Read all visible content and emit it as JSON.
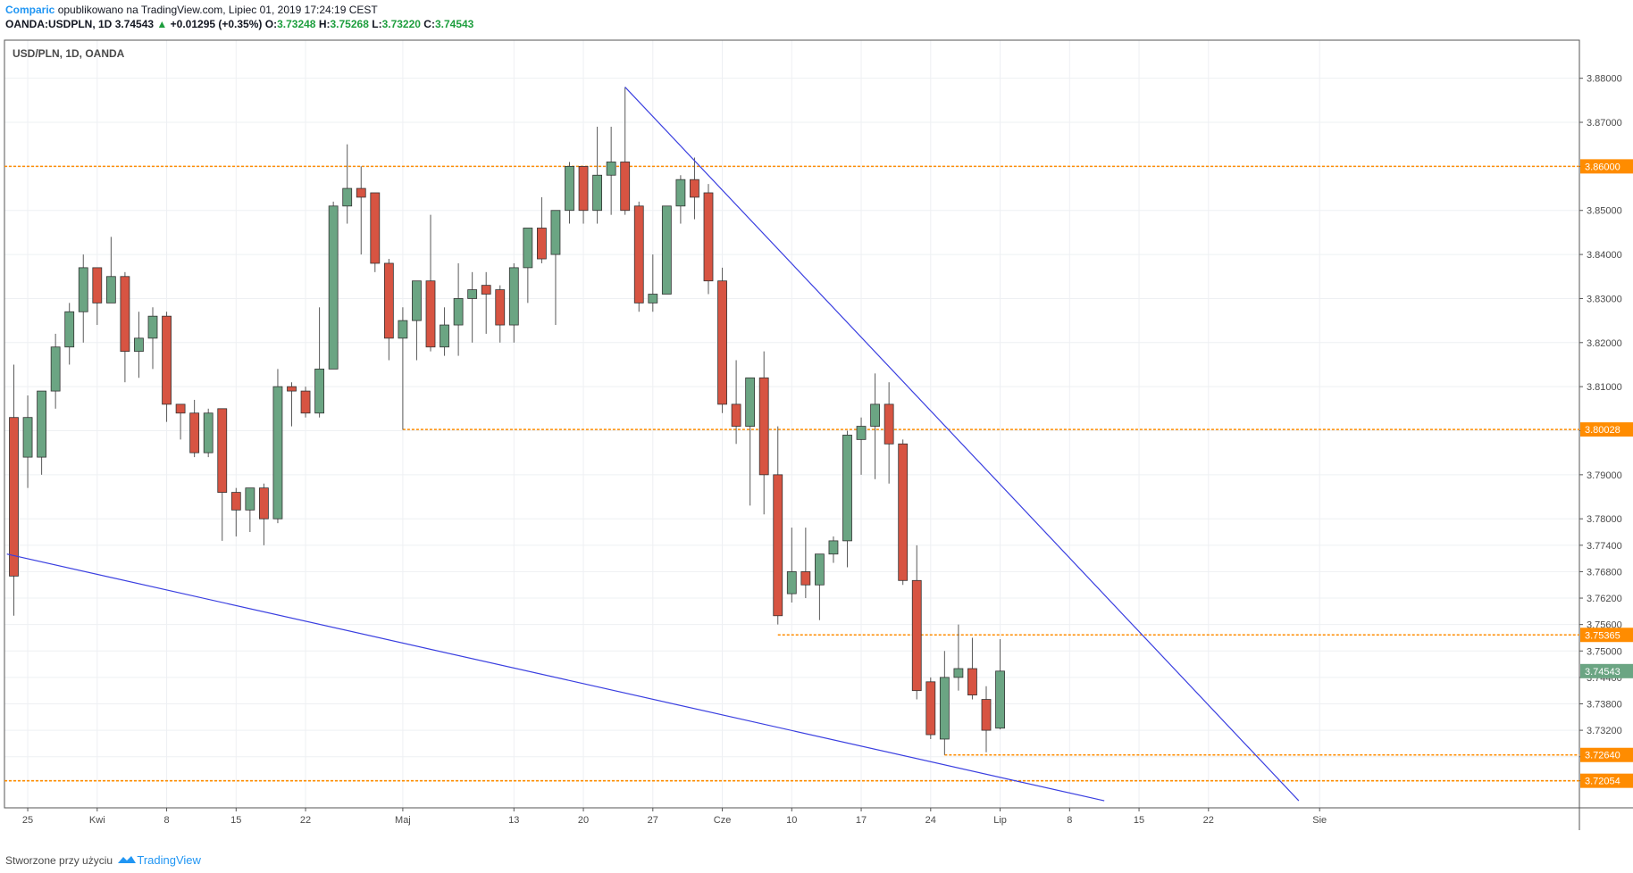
{
  "header": {
    "author": "Comparic",
    "published_text": "opublikowano na TradingView.com, Lipiec 01, 2019 17:24:19 CEST",
    "symbol_info": "OANDA:USDPLN, 1D",
    "last": "3.74543",
    "change": "+0.01295 (+0.35%)",
    "o_label": "O:",
    "o_value": "3.73248",
    "h_label": "H:",
    "h_value": "3.75268",
    "l_label": "L:",
    "l_value": "3.73220",
    "c_label": "C:",
    "c_value": "3.74543"
  },
  "footer": {
    "text": "Stworzone przy użyciu",
    "brand": "TradingView"
  },
  "colors": {
    "up": "#6ba583",
    "down": "#d75442",
    "wick": "#5a5a5a",
    "trendline": "#3a3fe0",
    "level": "#ff8c00",
    "grid": "#eef0f3",
    "last_badge": "#6ba583"
  },
  "chart_data": {
    "type": "candlestick",
    "title": "USD/PLN, 1D, OANDA",
    "ylim": [
      3.715,
      3.885
    ],
    "y_ticks": [
      "3.88000",
      "3.87000",
      "3.86000",
      "3.85000",
      "3.84000",
      "3.83000",
      "3.82000",
      "3.81000",
      "3.80000",
      "3.79000",
      "3.78000",
      "3.77400",
      "3.76800",
      "3.76200",
      "3.75600",
      "3.75000",
      "3.74400",
      "3.73800",
      "3.73200",
      "3.72600",
      "3.72054"
    ],
    "x_ticks": [
      {
        "label": "25",
        "slot": 1
      },
      {
        "label": "Kwi",
        "slot": 6
      },
      {
        "label": "8",
        "slot": 11
      },
      {
        "label": "15",
        "slot": 16
      },
      {
        "label": "22",
        "slot": 21
      },
      {
        "label": "Maj",
        "slot": 28
      },
      {
        "label": "13",
        "slot": 36
      },
      {
        "label": "20",
        "slot": 41
      },
      {
        "label": "27",
        "slot": 46
      },
      {
        "label": "Cze",
        "slot": 51
      },
      {
        "label": "10",
        "slot": 56
      },
      {
        "label": "17",
        "slot": 61
      },
      {
        "label": "24",
        "slot": 66
      },
      {
        "label": "Lip",
        "slot": 71
      },
      {
        "label": "8",
        "slot": 76
      },
      {
        "label": "15",
        "slot": 81
      },
      {
        "label": "22",
        "slot": 86
      },
      {
        "label": "Sie",
        "slot": 94
      }
    ],
    "candles": [
      [
        3.803,
        3.815,
        3.758,
        3.767
      ],
      [
        3.794,
        3.808,
        3.787,
        3.803
      ],
      [
        3.794,
        3.809,
        3.79,
        3.809
      ],
      [
        3.809,
        3.822,
        3.805,
        3.819
      ],
      [
        3.819,
        3.829,
        3.815,
        3.827
      ],
      [
        3.827,
        3.84,
        3.82,
        3.837
      ],
      [
        3.837,
        3.837,
        3.824,
        3.829
      ],
      [
        3.829,
        3.844,
        3.829,
        3.835
      ],
      [
        3.835,
        3.836,
        3.811,
        3.818
      ],
      [
        3.818,
        3.827,
        3.812,
        3.821
      ],
      [
        3.821,
        3.828,
        3.814,
        3.826
      ],
      [
        3.826,
        3.827,
        3.802,
        3.806
      ],
      [
        3.806,
        3.806,
        3.798,
        3.804
      ],
      [
        3.804,
        3.807,
        3.794,
        3.795
      ],
      [
        3.795,
        3.805,
        3.794,
        3.804
      ],
      [
        3.805,
        3.805,
        3.775,
        3.786
      ],
      [
        3.786,
        3.787,
        3.776,
        3.782
      ],
      [
        3.782,
        3.787,
        3.777,
        3.787
      ],
      [
        3.787,
        3.788,
        3.774,
        3.78
      ],
      [
        3.78,
        3.814,
        3.779,
        3.81
      ],
      [
        3.81,
        3.811,
        3.801,
        3.809
      ],
      [
        3.809,
        3.81,
        3.803,
        3.804
      ],
      [
        3.804,
        3.828,
        3.803,
        3.814
      ],
      [
        3.814,
        3.852,
        3.814,
        3.851
      ],
      [
        3.851,
        3.865,
        3.847,
        3.855
      ],
      [
        3.855,
        3.86,
        3.84,
        3.853
      ],
      [
        3.854,
        3.854,
        3.836,
        3.838
      ],
      [
        3.838,
        3.839,
        3.816,
        3.821
      ],
      [
        3.821,
        3.828,
        3.8002,
        3.825
      ],
      [
        3.825,
        3.834,
        3.816,
        3.834
      ],
      [
        3.834,
        3.849,
        3.818,
        3.819
      ],
      [
        3.819,
        3.828,
        3.817,
        3.824
      ],
      [
        3.824,
        3.838,
        3.817,
        3.83
      ],
      [
        3.83,
        3.836,
        3.82,
        3.832
      ],
      [
        3.833,
        3.836,
        3.822,
        3.831
      ],
      [
        3.832,
        3.833,
        3.82,
        3.824
      ],
      [
        3.824,
        3.838,
        3.82,
        3.837
      ],
      [
        3.837,
        3.846,
        3.829,
        3.846
      ],
      [
        3.846,
        3.853,
        3.838,
        3.839
      ],
      [
        3.84,
        3.85,
        3.824,
        3.85
      ],
      [
        3.85,
        3.861,
        3.847,
        3.86
      ],
      [
        3.86,
        3.86,
        3.847,
        3.85
      ],
      [
        3.85,
        3.869,
        3.847,
        3.858
      ],
      [
        3.858,
        3.869,
        3.849,
        3.861
      ],
      [
        3.861,
        3.878,
        3.849,
        3.85
      ],
      [
        3.851,
        3.852,
        3.827,
        3.829
      ],
      [
        3.829,
        3.84,
        3.827,
        3.831
      ],
      [
        3.831,
        3.851,
        3.831,
        3.851
      ],
      [
        3.851,
        3.858,
        3.847,
        3.857
      ],
      [
        3.857,
        3.862,
        3.848,
        3.853
      ],
      [
        3.854,
        3.856,
        3.831,
        3.834
      ],
      [
        3.834,
        3.837,
        3.804,
        3.806
      ],
      [
        3.806,
        3.816,
        3.797,
        3.801
      ],
      [
        3.801,
        3.812,
        3.783,
        3.812
      ],
      [
        3.812,
        3.818,
        3.781,
        3.79
      ],
      [
        3.79,
        3.801,
        3.756,
        3.758
      ],
      [
        3.763,
        3.778,
        3.761,
        3.768
      ],
      [
        3.768,
        3.778,
        3.762,
        3.765
      ],
      [
        3.765,
        3.771,
        3.757,
        3.772
      ],
      [
        3.772,
        3.776,
        3.77,
        3.775
      ],
      [
        3.775,
        3.8,
        3.769,
        3.799
      ],
      [
        3.798,
        3.803,
        3.79,
        3.801
      ],
      [
        3.801,
        3.813,
        3.789,
        3.806
      ],
      [
        3.806,
        3.811,
        3.788,
        3.797
      ],
      [
        3.797,
        3.798,
        3.765,
        3.766
      ],
      [
        3.766,
        3.774,
        3.739,
        3.741
      ],
      [
        3.743,
        3.744,
        3.73,
        3.731
      ],
      [
        3.73,
        3.75,
        3.7264,
        3.744
      ],
      [
        3.744,
        3.756,
        3.741,
        3.746
      ],
      [
        3.746,
        3.753,
        3.739,
        3.74
      ],
      [
        3.739,
        3.742,
        3.727,
        3.732
      ],
      [
        3.73248,
        3.75268,
        3.7322,
        3.74543
      ]
    ],
    "horizontal_levels": [
      {
        "value": 3.86,
        "label": "3.86000",
        "from_slot": 0
      },
      {
        "value": 3.80028,
        "label": "3.80028",
        "from_slot": 28
      },
      {
        "value": 3.75365,
        "label": "3.75365",
        "from_slot": 55
      },
      {
        "value": 3.7264,
        "label": "3.72640",
        "from_slot": 67
      },
      {
        "value": 3.72054,
        "label": "3.72054",
        "from_slot": 0
      }
    ],
    "trendlines": [
      {
        "name": "upper",
        "from": {
          "slot": 44,
          "value": 3.878
        },
        "to": {
          "slot": 92.5,
          "value": 3.716
        }
      },
      {
        "name": "lower",
        "from": {
          "slot": -0.5,
          "value": 3.772
        },
        "to": {
          "slot": 78.5,
          "value": 3.716
        }
      }
    ],
    "last_price": {
      "value": 3.74543,
      "label": "3.74543"
    }
  }
}
